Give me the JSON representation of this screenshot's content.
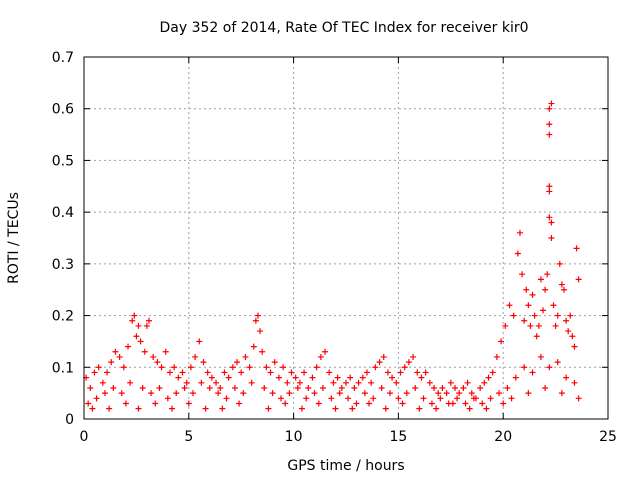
{
  "chart_data": {
    "type": "scatter",
    "title": "Day 352 of 2014, Rate Of TEC Index for receiver kir0",
    "xlabel": "GPS time / hours",
    "ylabel": "ROTI / TECUs",
    "xlim": [
      0,
      25
    ],
    "ylim": [
      0,
      0.7
    ],
    "xticks": [
      0,
      5,
      10,
      15,
      20,
      25
    ],
    "yticks": [
      0,
      0.1,
      0.2,
      0.3,
      0.4,
      0.5,
      0.6,
      0.7
    ],
    "xtick_labels": [
      "0",
      "5",
      "10",
      "15",
      "20",
      "25"
    ],
    "ytick_labels": [
      "0",
      "0.1",
      "0.2",
      "0.3",
      "0.4",
      "0.5",
      "0.6",
      "0.7"
    ],
    "grid": true,
    "marker": "+",
    "color": "#ff0000",
    "series": [
      {
        "name": "ROTI",
        "x": [
          0.1,
          0.3,
          0.5,
          0.7,
          0.9,
          1.1,
          1.3,
          1.5,
          1.7,
          1.9,
          2.1,
          2.3,
          2.4,
          2.5,
          2.6,
          2.7,
          2.9,
          3.0,
          3.1,
          3.3,
          3.5,
          3.7,
          3.9,
          4.1,
          4.3,
          4.5,
          4.7,
          4.9,
          5.1,
          5.3,
          5.5,
          5.7,
          5.9,
          6.1,
          6.3,
          6.5,
          6.7,
          6.9,
          7.1,
          7.3,
          7.5,
          7.7,
          7.9,
          8.1,
          8.2,
          8.3,
          8.4,
          8.5,
          8.7,
          8.9,
          9.1,
          9.3,
          9.5,
          9.7,
          9.9,
          10.1,
          10.3,
          10.5,
          10.7,
          10.9,
          11.1,
          11.3,
          11.5,
          11.7,
          11.9,
          12.1,
          12.3,
          12.5,
          12.7,
          12.9,
          13.1,
          13.3,
          13.5,
          13.7,
          13.9,
          14.1,
          14.3,
          14.5,
          14.7,
          14.9,
          15.1,
          15.3,
          15.5,
          15.7,
          15.9,
          16.1,
          16.3,
          16.5,
          16.7,
          16.9,
          17.1,
          17.3,
          17.5,
          17.7,
          17.9,
          18.1,
          18.3,
          18.5,
          18.7,
          18.9,
          19.1,
          19.3,
          19.5,
          19.7,
          19.9,
          20.1,
          20.3,
          20.5,
          20.7,
          20.8,
          20.9,
          21.0,
          21.1,
          21.2,
          21.3,
          21.4,
          21.5,
          21.6,
          21.7,
          21.8,
          21.9,
          22.0,
          22.1,
          22.2,
          22.2,
          22.2,
          22.2,
          22.2,
          22.2,
          22.3,
          22.3,
          22.3,
          22.4,
          22.5,
          22.6,
          22.7,
          22.8,
          22.9,
          23.0,
          23.1,
          23.2,
          23.3,
          23.4,
          23.5,
          23.6,
          0.2,
          0.6,
          1.0,
          1.4,
          1.8,
          2.2,
          2.8,
          3.2,
          3.6,
          4.0,
          4.4,
          4.8,
          5.2,
          5.6,
          6.0,
          6.4,
          6.8,
          7.2,
          7.6,
          8.0,
          8.6,
          9.0,
          9.4,
          9.8,
          10.2,
          10.6,
          11.0,
          11.4,
          11.8,
          12.2,
          12.6,
          13.0,
          13.4,
          13.8,
          14.2,
          14.6,
          15.0,
          15.4,
          15.8,
          16.2,
          16.6,
          17.0,
          17.4,
          17.8,
          18.2,
          18.6,
          19.0,
          19.4,
          19.8,
          20.2,
          20.6,
          21.0,
          21.4,
          21.8,
          22.2,
          22.6,
          23.0,
          23.4,
          0.4,
          1.2,
          2.0,
          2.6,
          3.4,
          4.2,
          5.0,
          5.8,
          6.6,
          7.4,
          8.8,
          9.6,
          10.4,
          11.2,
          12.0,
          12.8,
          13.6,
          14.4,
          15.2,
          16.0,
          16.8,
          17.6,
          18.4,
          19.2,
          20.0,
          20.4,
          21.2,
          22.0,
          22.8,
          23.6
        ],
        "y": [
          0.08,
          0.06,
          0.09,
          0.1,
          0.07,
          0.09,
          0.11,
          0.13,
          0.12,
          0.1,
          0.14,
          0.19,
          0.2,
          0.16,
          0.18,
          0.15,
          0.13,
          0.18,
          0.19,
          0.12,
          0.11,
          0.1,
          0.13,
          0.09,
          0.1,
          0.08,
          0.09,
          0.07,
          0.1,
          0.12,
          0.15,
          0.11,
          0.09,
          0.08,
          0.07,
          0.06,
          0.09,
          0.08,
          0.1,
          0.11,
          0.09,
          0.12,
          0.1,
          0.14,
          0.19,
          0.2,
          0.17,
          0.13,
          0.1,
          0.09,
          0.11,
          0.08,
          0.1,
          0.07,
          0.09,
          0.08,
          0.07,
          0.09,
          0.06,
          0.08,
          0.1,
          0.12,
          0.13,
          0.09,
          0.07,
          0.08,
          0.06,
          0.07,
          0.08,
          0.06,
          0.07,
          0.08,
          0.09,
          0.07,
          0.1,
          0.11,
          0.12,
          0.09,
          0.08,
          0.07,
          0.09,
          0.1,
          0.11,
          0.12,
          0.09,
          0.08,
          0.09,
          0.07,
          0.06,
          0.05,
          0.06,
          0.05,
          0.07,
          0.06,
          0.05,
          0.06,
          0.07,
          0.05,
          0.04,
          0.06,
          0.07,
          0.08,
          0.09,
          0.12,
          0.15,
          0.18,
          0.22,
          0.2,
          0.32,
          0.36,
          0.28,
          0.19,
          0.25,
          0.22,
          0.18,
          0.24,
          0.2,
          0.16,
          0.18,
          0.27,
          0.21,
          0.25,
          0.28,
          0.6,
          0.57,
          0.55,
          0.45,
          0.44,
          0.39,
          0.61,
          0.38,
          0.35,
          0.22,
          0.18,
          0.2,
          0.3,
          0.26,
          0.25,
          0.19,
          0.17,
          0.2,
          0.16,
          0.14,
          0.33,
          0.27,
          0.03,
          0.04,
          0.05,
          0.06,
          0.05,
          0.07,
          0.06,
          0.05,
          0.06,
          0.04,
          0.05,
          0.06,
          0.05,
          0.07,
          0.06,
          0.05,
          0.04,
          0.06,
          0.05,
          0.07,
          0.06,
          0.05,
          0.04,
          0.05,
          0.06,
          0.04,
          0.05,
          0.06,
          0.04,
          0.05,
          0.04,
          0.03,
          0.05,
          0.04,
          0.06,
          0.05,
          0.04,
          0.05,
          0.06,
          0.04,
          0.03,
          0.04,
          0.03,
          0.04,
          0.03,
          0.04,
          0.03,
          0.04,
          0.05,
          0.06,
          0.08,
          0.1,
          0.09,
          0.12,
          0.1,
          0.11,
          0.08,
          0.07,
          0.02,
          0.02,
          0.03,
          0.02,
          0.03,
          0.02,
          0.03,
          0.02,
          0.02,
          0.03,
          0.02,
          0.03,
          0.02,
          0.03,
          0.02,
          0.02,
          0.03,
          0.02,
          0.03,
          0.02,
          0.02,
          0.03,
          0.02,
          0.02,
          0.03,
          0.04,
          0.05,
          0.06,
          0.05,
          0.04
        ]
      }
    ]
  }
}
